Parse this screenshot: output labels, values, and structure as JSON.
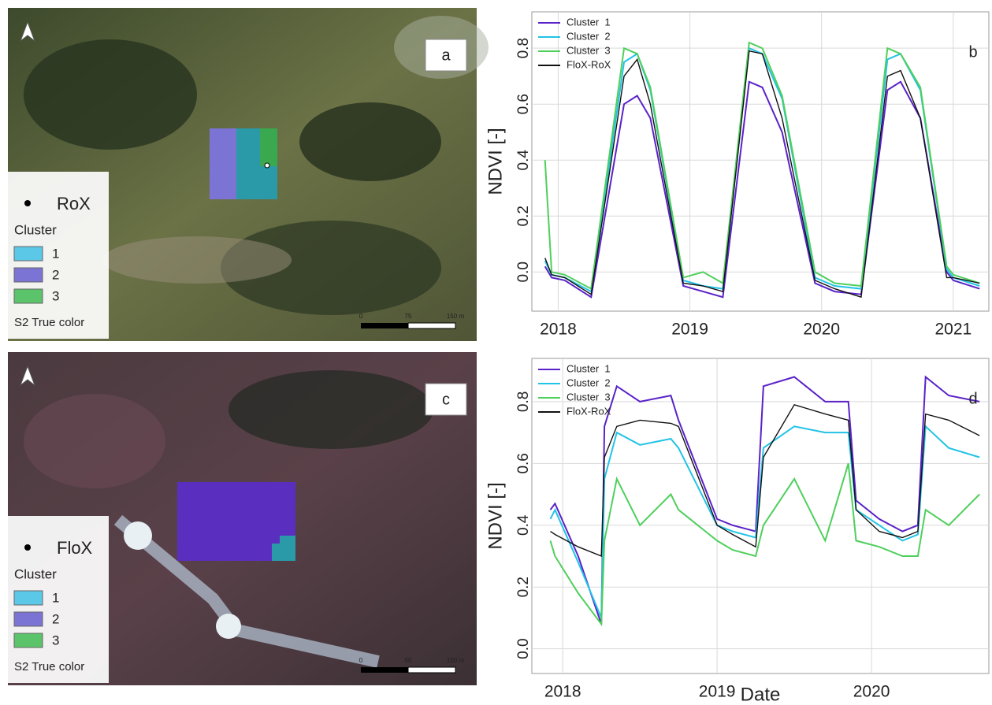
{
  "maps": [
    {
      "label": "a",
      "point_label": "RoX",
      "legend_title": "Cluster",
      "legend_items": [
        "1",
        "2",
        "3"
      ],
      "basemap": "S2 True color",
      "scale_labels": [
        "0",
        "75",
        "150 m"
      ]
    },
    {
      "label": "c",
      "point_label": "FloX",
      "legend_title": "Cluster",
      "legend_items": [
        "1",
        "2",
        "3"
      ],
      "basemap": "S2 True color",
      "scale_labels": [
        "0",
        "50",
        "100 m"
      ]
    }
  ],
  "chart_data": [
    {
      "type": "line",
      "panel_label": "b",
      "y_label": "NDVI [-]",
      "legend": "top-left",
      "grid": true,
      "xlim": [
        2017.8,
        2021.27
      ],
      "xticks": [
        2018,
        2019,
        2020,
        2021
      ],
      "ylim": [
        -0.14,
        0.93
      ],
      "yticks": [
        {
          "value": 0,
          "label": "0.0"
        },
        0.2,
        0.4,
        0.6,
        0.8
      ],
      "x": [
        2017.9,
        2017.95,
        2018.05,
        2018.25,
        2018.5,
        2018.6,
        2018.7,
        2018.95,
        2019.1,
        2019.25,
        2019.45,
        2019.55,
        2019.7,
        2019.95,
        2020.1,
        2020.3,
        2020.5,
        2020.6,
        2020.75,
        2020.95,
        2021.0,
        2021.2
      ],
      "series": [
        {
          "name": "Cluster  1",
          "color": "#5a22c8",
          "values": [
            0.02,
            -0.02,
            -0.03,
            -0.09,
            0.6,
            0.63,
            0.55,
            -0.05,
            -0.07,
            -0.09,
            0.68,
            0.66,
            0.5,
            -0.04,
            -0.07,
            -0.08,
            0.65,
            0.68,
            0.55,
            0.0,
            -0.03,
            -0.06
          ]
        },
        {
          "name": "Cluster  2",
          "color": "#22c3e6",
          "values": [
            0.04,
            -0.01,
            -0.02,
            -0.07,
            0.75,
            0.78,
            0.65,
            -0.03,
            -0.05,
            -0.06,
            0.8,
            0.78,
            0.62,
            -0.02,
            -0.05,
            -0.06,
            0.76,
            0.78,
            0.65,
            0.01,
            -0.02,
            -0.05
          ]
        },
        {
          "name": "Cluster  3",
          "color": "#4fcf5c",
          "values": [
            0.4,
            0.0,
            -0.01,
            -0.06,
            0.8,
            0.78,
            0.66,
            -0.02,
            0.0,
            -0.04,
            0.82,
            0.8,
            0.63,
            0.0,
            -0.04,
            -0.05,
            0.8,
            0.78,
            0.66,
            0.02,
            -0.01,
            -0.04
          ]
        },
        {
          "name": "FloX-RoX",
          "color": "#111111",
          "values": [
            0.05,
            -0.01,
            -0.02,
            -0.08,
            0.7,
            0.76,
            0.6,
            -0.04,
            -0.05,
            -0.07,
            0.79,
            0.78,
            0.55,
            -0.03,
            -0.06,
            -0.09,
            0.7,
            0.72,
            0.55,
            -0.02,
            -0.02,
            -0.04
          ]
        }
      ]
    },
    {
      "type": "line",
      "panel_label": "d",
      "y_label": "NDVI [-]",
      "x_label": "Date",
      "legend": "top-left",
      "grid": true,
      "xlim": [
        2017.8,
        2020.76
      ],
      "xticks": [
        2018,
        2019,
        2020
      ],
      "ylim": [
        -0.08,
        0.94
      ],
      "yticks": [
        {
          "value": 0,
          "label": "0.0"
        },
        0.2,
        0.4,
        0.6,
        0.8
      ],
      "x": [
        2017.92,
        2017.95,
        2018.1,
        2018.25,
        2018.27,
        2018.35,
        2018.5,
        2018.7,
        2018.75,
        2019.0,
        2019.1,
        2019.25,
        2019.3,
        2019.5,
        2019.7,
        2019.85,
        2019.9,
        2020.05,
        2020.2,
        2020.3,
        2020.35,
        2020.5,
        2020.7
      ],
      "series": [
        {
          "name": "Cluster  1",
          "color": "#5a22c8",
          "values": [
            0.45,
            0.47,
            0.3,
            0.08,
            0.72,
            0.85,
            0.8,
            0.82,
            0.74,
            0.42,
            0.4,
            0.38,
            0.85,
            0.88,
            0.8,
            0.8,
            0.48,
            0.42,
            0.38,
            0.4,
            0.88,
            0.82,
            0.8
          ]
        },
        {
          "name": "Cluster  2",
          "color": "#22c3e6",
          "values": [
            0.42,
            0.45,
            0.28,
            0.1,
            0.55,
            0.7,
            0.66,
            0.68,
            0.65,
            0.4,
            0.38,
            0.36,
            0.65,
            0.72,
            0.7,
            0.7,
            0.45,
            0.4,
            0.35,
            0.37,
            0.72,
            0.65,
            0.62
          ]
        },
        {
          "name": "Cluster  3",
          "color": "#4fcf5c",
          "values": [
            0.35,
            0.3,
            0.18,
            0.08,
            0.35,
            0.55,
            0.4,
            0.5,
            0.45,
            0.35,
            0.32,
            0.3,
            0.4,
            0.55,
            0.35,
            0.6,
            0.35,
            0.33,
            0.3,
            0.3,
            0.45,
            0.4,
            0.5
          ]
        },
        {
          "name": "FloX-RoX",
          "color": "#111111",
          "values": [
            0.38,
            0.37,
            0.33,
            0.3,
            0.62,
            0.72,
            0.74,
            0.73,
            0.72,
            0.4,
            0.37,
            0.33,
            0.62,
            0.79,
            0.76,
            0.74,
            0.45,
            0.38,
            0.36,
            0.38,
            0.76,
            0.74,
            0.69
          ]
        }
      ]
    }
  ]
}
